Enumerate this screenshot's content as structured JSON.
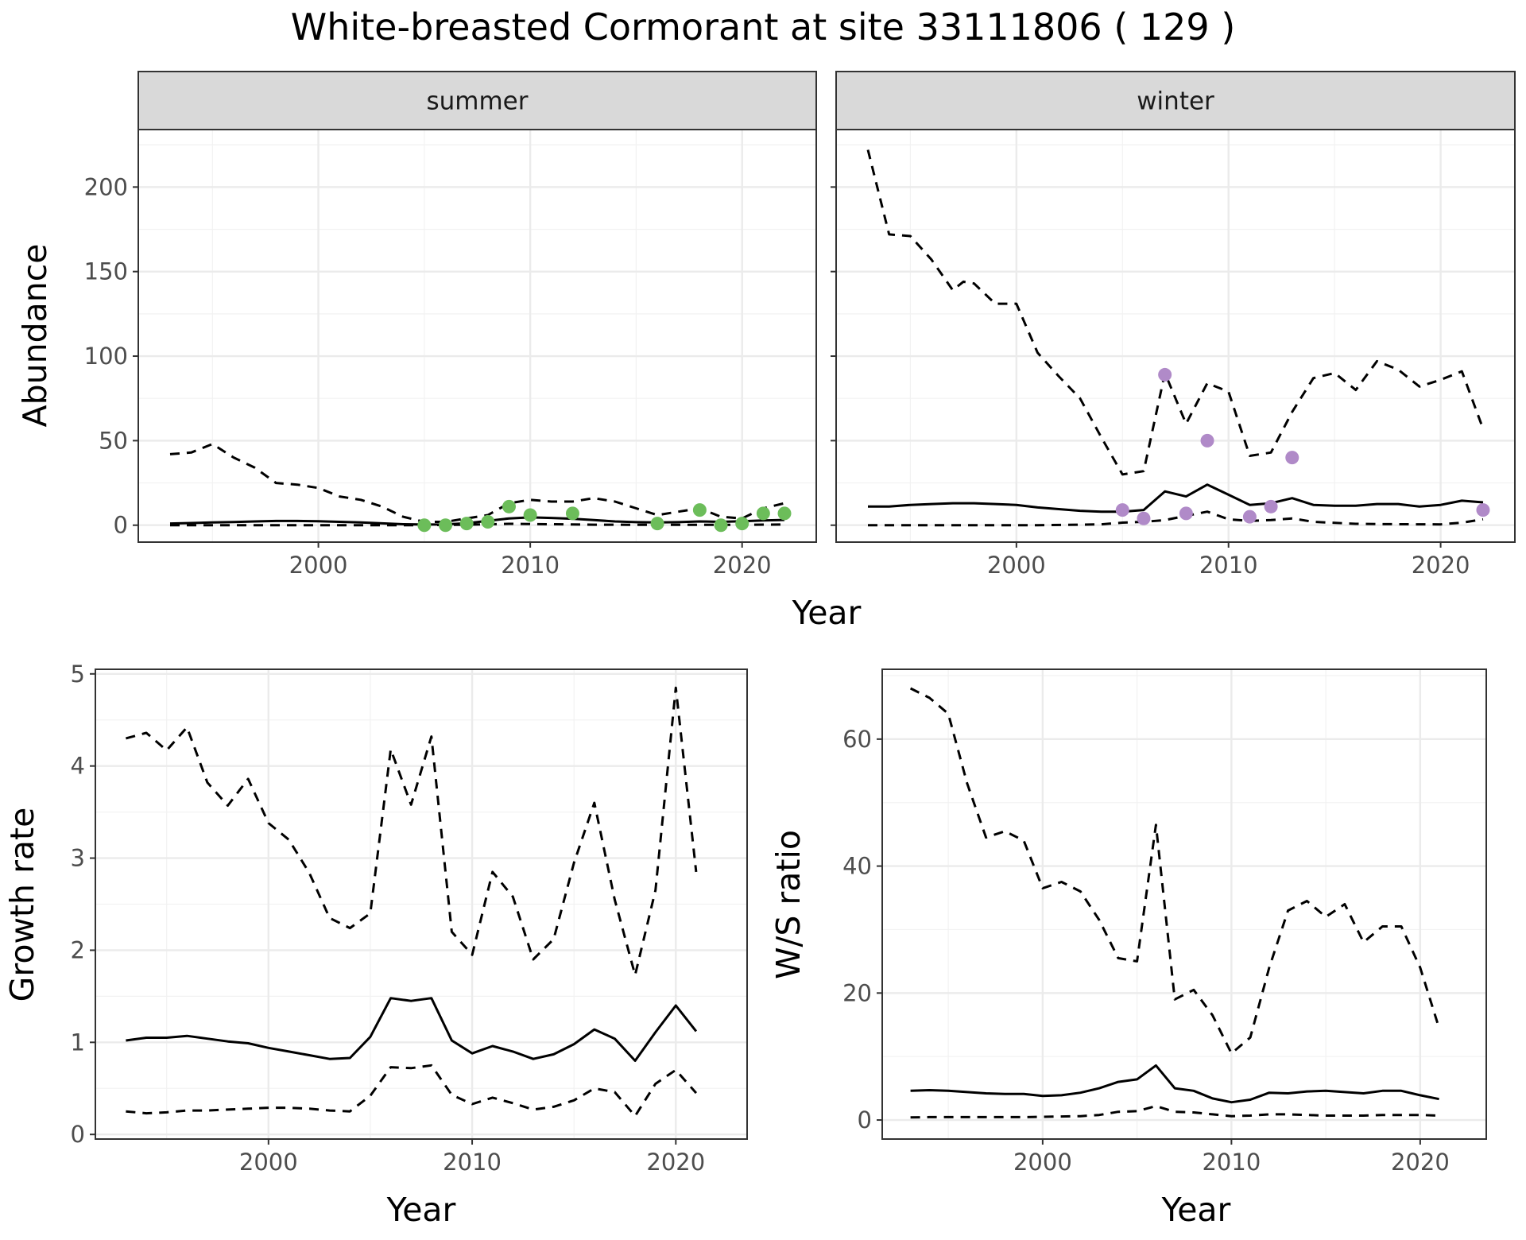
{
  "title": "White-breasted Cormorant at site 33111806 ( 129 )",
  "colors": {
    "summer_points": "#6cbd5a",
    "winter_points": "#b08ac8",
    "line": "#000000",
    "strip_fill": "#d9d9d9",
    "grid": "#ebebeb"
  },
  "chart_data": [
    {
      "id": "abundance_summer",
      "type": "line",
      "panel_label": "summer",
      "ylabel": "Abundance",
      "xlabel": "Year",
      "xlim": [
        1991.5,
        2023.5
      ],
      "ylim": [
        -10,
        234
      ],
      "x_ticks": [
        2000,
        2010,
        2020
      ],
      "y_ticks": [
        0,
        50,
        100,
        150,
        200
      ],
      "grid": true,
      "series": [
        {
          "style": "dashed",
          "x": [
            1993,
            1994,
            1995,
            1996,
            1997,
            1998,
            1999,
            2000,
            2001,
            2002,
            2003,
            2004,
            2005,
            2006,
            2007,
            2008,
            2009,
            2010,
            2011,
            2012,
            2013,
            2014,
            2015,
            2016,
            2017,
            2018,
            2019,
            2020,
            2021,
            2022
          ],
          "y": [
            42,
            43,
            48,
            40,
            34,
            25,
            24,
            22,
            17,
            15,
            11,
            5,
            2,
            2,
            4,
            6,
            13,
            15,
            14,
            14,
            16,
            14,
            10,
            6,
            8,
            10,
            5,
            4,
            10,
            13
          ]
        },
        {
          "style": "solid",
          "x": [
            1993,
            1994,
            1995,
            1996,
            1997,
            1998,
            1999,
            2000,
            2001,
            2002,
            2003,
            2004,
            2005,
            2006,
            2007,
            2008,
            2009,
            2010,
            2011,
            2012,
            2013,
            2014,
            2015,
            2016,
            2017,
            2018,
            2019,
            2020,
            2021,
            2022
          ],
          "y": [
            1,
            1.3,
            1.6,
            1.9,
            2.2,
            2.5,
            2.5,
            2.3,
            2,
            1.6,
            1.1,
            0.6,
            0.4,
            0.5,
            1.2,
            2.6,
            4,
            4.6,
            4.3,
            3.8,
            3,
            2.2,
            1.8,
            1.6,
            1.8,
            2.2,
            2,
            2.3,
            2.8,
            3.1
          ]
        },
        {
          "style": "dashed",
          "x": [
            1993,
            1996,
            1999,
            2002,
            2005,
            2007,
            2009,
            2011,
            2013,
            2016,
            2019,
            2022
          ],
          "y": [
            0,
            0,
            0,
            0,
            0,
            0.3,
            0.8,
            0.6,
            0.3,
            0.2,
            0.2,
            0.4
          ]
        }
      ],
      "points": {
        "x": [
          2005,
          2006,
          2007,
          2008,
          2009,
          2010,
          2012,
          2016,
          2018,
          2019,
          2020,
          2021,
          2022
        ],
        "y": [
          0,
          0,
          1,
          2,
          11,
          6,
          7,
          1,
          9,
          0,
          1,
          7,
          7
        ]
      }
    },
    {
      "id": "abundance_winter",
      "type": "line",
      "panel_label": "winter",
      "xlabel": "Year",
      "xlim": [
        1991.5,
        2023.5
      ],
      "ylim": [
        -10,
        234
      ],
      "x_ticks": [
        2000,
        2010,
        2020
      ],
      "y_ticks": [
        0,
        50,
        100,
        150,
        200
      ],
      "grid": true,
      "series": [
        {
          "style": "dashed",
          "x": [
            1993,
            1994,
            1995,
            1996,
            1997,
            1997.5,
            1998,
            1999,
            2000,
            2001,
            2002,
            2003,
            2004,
            2005,
            2006,
            2007,
            2008,
            2009,
            2010,
            2011,
            2012,
            2013,
            2014,
            2015,
            2016,
            2017,
            2018,
            2019,
            2020,
            2021,
            2022
          ],
          "y": [
            222,
            172,
            171,
            157,
            139,
            144,
            143,
            131,
            131,
            102,
            88,
            75,
            52,
            30,
            32,
            90,
            60,
            84,
            79,
            41,
            43,
            67,
            87,
            90,
            80,
            97,
            92,
            82,
            86,
            91,
            57
          ]
        },
        {
          "style": "solid",
          "x": [
            1993,
            1994,
            1995,
            1996,
            1997,
            1998,
            1999,
            2000,
            2001,
            2002,
            2003,
            2004,
            2005,
            2006,
            2007,
            2008,
            2009,
            2010,
            2011,
            2012,
            2013,
            2014,
            2015,
            2016,
            2017,
            2018,
            2019,
            2020,
            2021,
            2022
          ],
          "y": [
            11,
            11,
            12,
            12.5,
            13,
            13,
            12.5,
            12,
            10.5,
            9.5,
            8.5,
            8,
            8,
            9,
            20,
            17,
            24,
            18,
            12,
            13,
            16,
            12,
            11.5,
            11.5,
            12.5,
            12.5,
            11,
            12,
            14.5,
            13.5
          ]
        },
        {
          "style": "dashed",
          "x": [
            1993,
            1997,
            2001,
            2004,
            2005,
            2006,
            2007,
            2008,
            2009,
            2010,
            2011,
            2012,
            2013,
            2014,
            2016,
            2018,
            2020,
            2021,
            2022
          ],
          "y": [
            0,
            0,
            0,
            0.5,
            1.5,
            2,
            3,
            5.5,
            8,
            3.5,
            2.5,
            3,
            4,
            2,
            0.8,
            0.6,
            0.5,
            1.5,
            3.5
          ]
        }
      ],
      "points": {
        "x": [
          2005,
          2006,
          2007,
          2008,
          2009,
          2011,
          2012,
          2013,
          2022
        ],
        "y": [
          9,
          4,
          89,
          7,
          50,
          5,
          11,
          40,
          9
        ]
      }
    },
    {
      "id": "growth_rate",
      "type": "line",
      "ylabel": "Growth rate",
      "xlabel": "Year",
      "xlim": [
        1991.5,
        2023.5
      ],
      "ylim": [
        -0.05,
        5.05
      ],
      "x_ticks": [
        2000,
        2010,
        2020
      ],
      "y_ticks": [
        0,
        1,
        2,
        3,
        4,
        5
      ],
      "grid": true,
      "series": [
        {
          "style": "dashed",
          "x": [
            1993,
            1994,
            1995,
            1996,
            1997,
            1998,
            1999,
            2000,
            2001,
            2002,
            2003,
            2004,
            2005,
            2006,
            2007,
            2008,
            2009,
            2010,
            2011,
            2012,
            2013,
            2014,
            2015,
            2016,
            2017,
            2018,
            2019,
            2020,
            2021
          ],
          "y": [
            4.3,
            4.36,
            4.17,
            4.42,
            3.82,
            3.57,
            3.86,
            3.38,
            3.2,
            2.84,
            2.35,
            2.24,
            2.4,
            4.18,
            3.58,
            4.32,
            2.2,
            1.95,
            2.85,
            2.58,
            1.9,
            2.12,
            2.95,
            3.6,
            2.55,
            1.73,
            2.65,
            4.85,
            2.85
          ]
        },
        {
          "style": "solid",
          "x": [
            1993,
            1994,
            1995,
            1996,
            1997,
            1998,
            1999,
            2000,
            2001,
            2002,
            2003,
            2004,
            2005,
            2006,
            2007,
            2008,
            2009,
            2010,
            2011,
            2012,
            2013,
            2014,
            2015,
            2016,
            2017,
            2018,
            2019,
            2020,
            2021
          ],
          "y": [
            1.02,
            1.05,
            1.05,
            1.07,
            1.04,
            1.01,
            0.99,
            0.94,
            0.9,
            0.86,
            0.82,
            0.83,
            1.06,
            1.48,
            1.45,
            1.48,
            1.02,
            0.88,
            0.96,
            0.9,
            0.82,
            0.87,
            0.98,
            1.14,
            1.04,
            0.8,
            1.11,
            1.4,
            1.12
          ]
        },
        {
          "style": "dashed",
          "x": [
            1993,
            1994,
            1995,
            1996,
            1997,
            1998,
            1999,
            2000,
            2001,
            2002,
            2003,
            2004,
            2005,
            2006,
            2007,
            2008,
            2009,
            2010,
            2011,
            2012,
            2013,
            2014,
            2015,
            2016,
            2017,
            2018,
            2019,
            2020,
            2021
          ],
          "y": [
            0.25,
            0.23,
            0.24,
            0.26,
            0.26,
            0.27,
            0.28,
            0.29,
            0.29,
            0.28,
            0.26,
            0.25,
            0.42,
            0.73,
            0.72,
            0.75,
            0.43,
            0.33,
            0.4,
            0.34,
            0.27,
            0.3,
            0.37,
            0.5,
            0.46,
            0.2,
            0.55,
            0.7,
            0.45
          ]
        }
      ]
    },
    {
      "id": "ws_ratio",
      "type": "line",
      "ylabel": "W/S ratio",
      "xlabel": "Year",
      "xlim": [
        1991.5,
        2023.5
      ],
      "ylim": [
        -3,
        71
      ],
      "x_ticks": [
        2000,
        2010,
        2020
      ],
      "y_ticks": [
        0,
        20,
        40,
        60
      ],
      "grid": true,
      "series": [
        {
          "style": "dashed",
          "x": [
            1993,
            1994,
            1995,
            1996,
            1997,
            1998,
            1999,
            2000,
            2001,
            2002,
            2003,
            2004,
            2005,
            2006,
            2007,
            2008,
            2009,
            2010,
            2011,
            2012,
            2013,
            2014,
            2015,
            2016,
            2017,
            2018,
            2019,
            2020,
            2021
          ],
          "y": [
            68,
            66.5,
            64,
            53,
            44.5,
            45.5,
            44,
            36.5,
            37.5,
            36,
            31.5,
            25.5,
            25,
            46.5,
            19,
            20.5,
            16.5,
            10.5,
            13,
            24,
            33,
            34.5,
            32,
            34,
            28,
            30.5,
            30.5,
            24,
            14.5
          ]
        },
        {
          "style": "solid",
          "x": [
            1993,
            1994,
            1995,
            1996,
            1997,
            1998,
            1999,
            2000,
            2001,
            2002,
            2003,
            2004,
            2005,
            2006,
            2007,
            2008,
            2009,
            2010,
            2011,
            2012,
            2013,
            2014,
            2015,
            2016,
            2017,
            2018,
            2019,
            2020,
            2021
          ],
          "y": [
            4.6,
            4.7,
            4.6,
            4.4,
            4.2,
            4.1,
            4.1,
            3.8,
            3.9,
            4.3,
            5,
            6,
            6.4,
            8.6,
            5,
            4.6,
            3.4,
            2.8,
            3.2,
            4.3,
            4.2,
            4.5,
            4.6,
            4.4,
            4.2,
            4.6,
            4.6,
            3.9,
            3.3
          ]
        },
        {
          "style": "dashed",
          "x": [
            1993,
            1994,
            1995,
            1996,
            1997,
            1998,
            1999,
            2000,
            2001,
            2002,
            2003,
            2004,
            2005,
            2006,
            2007,
            2008,
            2009,
            2010,
            2011,
            2012,
            2013,
            2014,
            2015,
            2016,
            2017,
            2018,
            2019,
            2020,
            2021
          ],
          "y": [
            0.4,
            0.45,
            0.45,
            0.45,
            0.45,
            0.45,
            0.45,
            0.5,
            0.55,
            0.6,
            0.8,
            1.3,
            1.4,
            2.2,
            1.3,
            1.2,
            0.9,
            0.6,
            0.7,
            0.9,
            0.9,
            0.8,
            0.7,
            0.7,
            0.7,
            0.8,
            0.8,
            0.8,
            0.7
          ]
        }
      ]
    }
  ]
}
